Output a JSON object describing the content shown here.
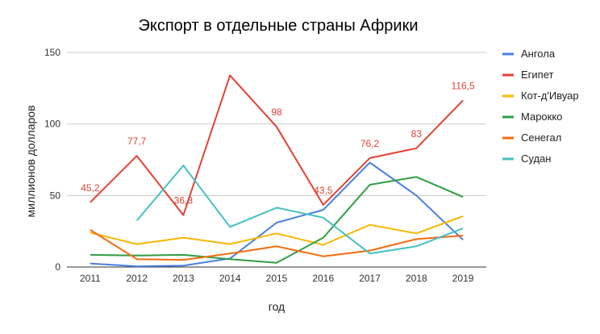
{
  "chart_data": {
    "type": "line",
    "title": "Экспорт в отдельные страны Африки",
    "xlabel": "год",
    "ylabel": "миллионов долларов",
    "categories": [
      "2011",
      "2012",
      "2013",
      "2014",
      "2015",
      "2016",
      "2017",
      "2018",
      "2019"
    ],
    "yticks": [
      "0",
      "50",
      "100",
      "150"
    ],
    "ylim": [
      0,
      150
    ],
    "grid": true,
    "legend_position": "right",
    "series": [
      {
        "name": "Ангола",
        "color": "#4a7fe0",
        "values": [
          2.5,
          0.5,
          1,
          6,
          31,
          40,
          73,
          50,
          19
        ]
      },
      {
        "name": "Египет",
        "color": "#e34234",
        "values": [
          45.2,
          77.7,
          36.3,
          134,
          98,
          43.5,
          76.2,
          83,
          116.5
        ]
      },
      {
        "name": "Кот-д'Ивуар",
        "color": "#f5b800",
        "values": [
          24,
          16,
          20.5,
          16,
          23.5,
          15.5,
          29.5,
          23.5,
          35.5
        ]
      },
      {
        "name": "Марокко",
        "color": "#2f9e44",
        "values": [
          8.5,
          8,
          8.5,
          5.5,
          3,
          20.5,
          57.5,
          63,
          49
        ]
      },
      {
        "name": "Сенегал",
        "color": "#f36c0f",
        "values": [
          26,
          5.5,
          5,
          9.5,
          14.5,
          7.5,
          11.5,
          19.5,
          22
        ]
      },
      {
        "name": "Судан",
        "color": "#45c1c1",
        "values": [
          null,
          32.5,
          71,
          28,
          41.5,
          34.5,
          9.5,
          14.5,
          27
        ]
      }
    ],
    "annotations": [
      {
        "series": "Египет",
        "index": 0,
        "text": "45,2"
      },
      {
        "series": "Египет",
        "index": 1,
        "text": "77,7"
      },
      {
        "series": "Египет",
        "index": 2,
        "text": "36,3"
      },
      {
        "series": "Египет",
        "index": 4,
        "text": "98"
      },
      {
        "series": "Египет",
        "index": 5,
        "text": "43,5"
      },
      {
        "series": "Египет",
        "index": 6,
        "text": "76,2"
      },
      {
        "series": "Египет",
        "index": 7,
        "text": "83"
      },
      {
        "series": "Египет",
        "index": 8,
        "text": "116,5"
      }
    ]
  }
}
